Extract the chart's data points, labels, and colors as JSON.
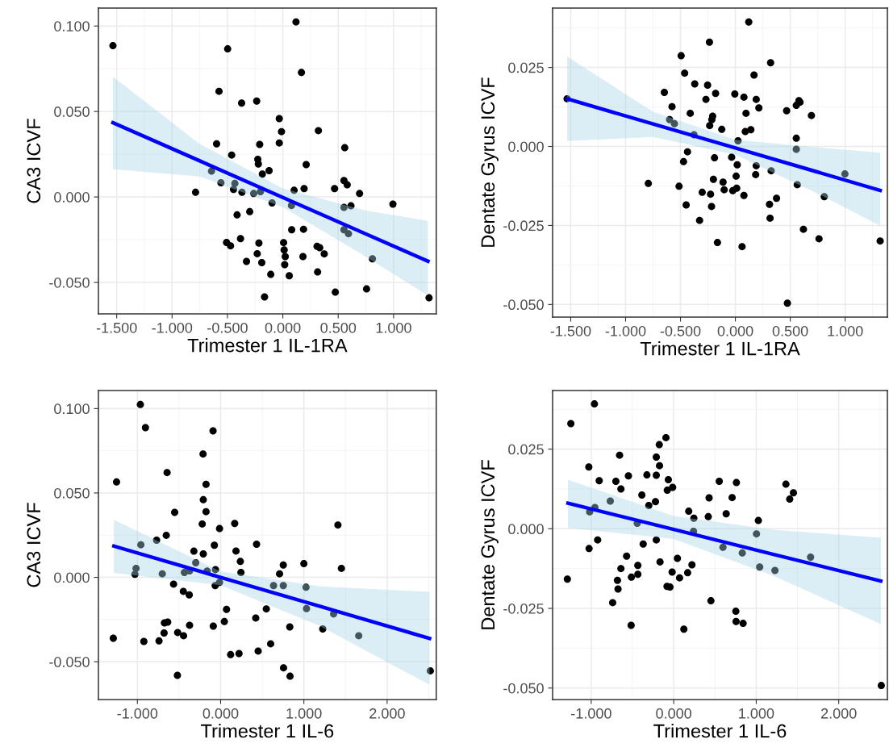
{
  "chart_data": [
    {
      "type": "scatter",
      "xlabel": "Trimester 1 IL-1RA",
      "ylabel": "CA3 ICVF",
      "grid": true,
      "xlim": [
        -1.665,
        1.385
      ],
      "ylim": [
        -0.0684,
        0.1105
      ],
      "xticks": [
        {
          "value": -1.5,
          "label": "-1.500"
        },
        {
          "value": -1.0,
          "label": "-1.000"
        },
        {
          "value": -0.5,
          "label": "-0.500"
        },
        {
          "value": 0.0,
          "label": "0.000"
        },
        {
          "value": 0.5,
          "label": "0.500"
        },
        {
          "value": 1.0,
          "label": "1.000"
        }
      ],
      "yticks": [
        {
          "value": -0.05,
          "label": "-0.050"
        },
        {
          "value": 0.0,
          "label": "0.000"
        },
        {
          "value": 0.05,
          "label": "0.050"
        },
        {
          "value": 0.1,
          "label": "0.100"
        }
      ],
      "series": [
        {
          "marker": "circle",
          "color": "#000000",
          "x": [
            -1.534,
            -0.498,
            0.119,
            0.168,
            -0.576,
            -0.372,
            -0.236,
            -0.032,
            -0.012,
            -0.032,
            0.321,
            -0.598,
            -0.209,
            -0.462,
            0.559,
            -0.226,
            -0.221,
            0.211,
            -0.644,
            -0.124,
            -0.185,
            -0.559,
            -0.433,
            -0.445,
            -0.369,
            -0.788,
            -0.263,
            -0.202,
            -0.097,
            0.102,
            0.192,
            0.467,
            0.552,
            0.581,
            0.693,
            0.994,
            0.078,
            0.552,
            0.615,
            -0.299,
            -0.413,
            0.08,
            0.187,
            0.552,
            0.593,
            -0.508,
            -0.472,
            -0.382,
            -0.216,
            -0.231,
            -0.328,
            -0.19,
            0.007,
            0.012,
            0.022,
            0.017,
            -0.109,
            0.058,
            0.182,
            0.309,
            0.333,
            0.374,
            0.314,
            0.474,
            0.756,
            0.809,
            -0.165,
            1.32
          ],
          "values": [
            0.0885,
            0.0866,
            0.1024,
            0.0728,
            0.0618,
            0.0549,
            0.0561,
            0.0458,
            0.0382,
            0.0316,
            0.0388,
            0.0311,
            0.0307,
            0.0245,
            0.0288,
            0.022,
            0.0193,
            0.0189,
            0.0151,
            0.0154,
            0.0134,
            0.0083,
            0.0079,
            0.0044,
            0.0027,
            0.0027,
            0.002,
            0.0031,
            -0.0035,
            0.0039,
            0.0049,
            0.0049,
            0.0096,
            0.0071,
            0.002,
            -0.0042,
            -0.005,
            -0.0061,
            -0.0052,
            -0.0086,
            -0.0105,
            -0.0192,
            -0.0189,
            -0.0192,
            -0.0215,
            -0.0266,
            -0.0286,
            -0.0244,
            -0.027,
            -0.0332,
            -0.0377,
            -0.0384,
            -0.0267,
            -0.031,
            -0.0349,
            -0.0396,
            -0.0453,
            -0.0461,
            -0.0349,
            -0.0289,
            -0.0297,
            -0.0333,
            -0.0439,
            -0.0557,
            -0.0538,
            -0.0362,
            -0.0585,
            -0.059
          ]
        },
        {
          "type": "line",
          "color": "#0000ff",
          "x": [
            -1.534,
            -0.75,
            0.0,
            0.75,
            1.31
          ],
          "values": [
            0.0434,
            0.0211,
            -0.0003,
            -0.0217,
            -0.0376
          ],
          "lower": [
            0.0162,
            0.012,
            -0.006,
            -0.035,
            -0.0577
          ],
          "upper": [
            0.0704,
            0.031,
            0.005,
            -0.008,
            -0.014
          ]
        }
      ]
    },
    {
      "type": "scatter",
      "xlabel": "Trimester 1 IL-1RA",
      "ylabel": "Dentate Gyrus ICVF",
      "grid": true,
      "xlim": [
        -1.665,
        1.385
      ],
      "ylim": [
        -0.054,
        0.0438
      ],
      "xticks": [
        {
          "value": -1.5,
          "label": "-1.500"
        },
        {
          "value": -1.0,
          "label": "-1.000"
        },
        {
          "value": -0.5,
          "label": "-0.500"
        },
        {
          "value": 0.0,
          "label": "0.000"
        },
        {
          "value": 0.5,
          "label": "0.500"
        },
        {
          "value": 1.0,
          "label": "1.000"
        }
      ],
      "yticks": [
        {
          "value": -0.05,
          "label": "-0.050"
        },
        {
          "value": -0.025,
          "label": "-0.025"
        },
        {
          "value": 0.0,
          "label": "0.000"
        },
        {
          "value": 0.025,
          "label": "0.025"
        }
      ],
      "series": [
        {
          "marker": "circle",
          "color": "#000000",
          "x": [
            0.122,
            -0.236,
            -0.494,
            0.321,
            -0.462,
            0.17,
            -0.37,
            -0.253,
            -0.647,
            -0.18,
            -0.005,
            0.078,
            -0.268,
            0.19,
            -0.577,
            0.214,
            0.579,
            0.589,
            0.555,
            0.467,
            0.693,
            -0.411,
            0.097,
            -0.207,
            -0.214,
            -0.599,
            -0.555,
            -0.234,
            -0.124,
            0.141,
            0.09,
            -0.377,
            0.024,
            0.555,
            -1.533,
            -0.436,
            0.555,
            -0.19,
            -0.034,
            0.017,
            -0.472,
            0.19,
            0.185,
            0.326,
            0.007,
            -0.2,
            -0.112,
            -0.793,
            -0.513,
            0.564,
            0.998,
            -0.302,
            -0.226,
            -0.102,
            -0.024,
            0.012,
            0.078,
            0.375,
            0.311,
            0.81,
            -0.448,
            -0.217,
            0.316,
            -0.326,
            0.62,
            0.762,
            -0.163,
            0.061,
            1.319,
            0.474
          ],
          "values": [
            0.0394,
            0.033,
            0.0287,
            0.0265,
            0.0232,
            0.0226,
            0.0198,
            0.0194,
            0.0171,
            0.0168,
            0.0166,
            0.0156,
            0.0149,
            0.0149,
            0.0126,
            0.0122,
            0.0145,
            0.014,
            0.013,
            0.0113,
            0.0098,
            0.0105,
            0.0105,
            0.0096,
            0.0085,
            0.0085,
            0.0072,
            0.0066,
            0.0054,
            0.0053,
            0.0047,
            0.0037,
            0.0018,
            0.0026,
            0.0151,
            -0.0017,
            -0.0009,
            -0.0036,
            -0.0034,
            -0.0058,
            -0.0048,
            -0.0061,
            -0.0089,
            -0.0077,
            -0.0094,
            -0.0104,
            -0.0113,
            -0.0117,
            -0.0126,
            -0.0121,
            -0.0087,
            -0.0145,
            -0.0151,
            -0.0137,
            -0.014,
            -0.0132,
            -0.0155,
            -0.0164,
            -0.0183,
            -0.0159,
            -0.0185,
            -0.019,
            -0.0227,
            -0.0234,
            -0.0262,
            -0.0292,
            -0.0304,
            -0.0317,
            -0.0299,
            -0.0496
          ]
        },
        {
          "type": "line",
          "color": "#0000ff",
          "x": [
            -1.533,
            -0.75,
            0.0,
            0.75,
            1.319
          ],
          "values": [
            0.0151,
            0.0071,
            -0.0005,
            -0.0081,
            -0.0139
          ],
          "lower": [
            0.0017,
            0.003,
            -0.0026,
            -0.0149,
            -0.0251
          ],
          "upper": [
            0.0285,
            0.011,
            0.0021,
            -0.0003,
            -0.002
          ]
        }
      ]
    },
    {
      "type": "scatter",
      "xlabel": "Trimester 1 IL-6",
      "ylabel": "CA3 ICVF",
      "grid": true,
      "xlim": [
        -1.468,
        2.59
      ],
      "ylim": [
        -0.0724,
        0.1107
      ],
      "xticks": [
        {
          "value": -1.0,
          "label": "-1.000"
        },
        {
          "value": 0.0,
          "label": "0.000"
        },
        {
          "value": 1.0,
          "label": "1.000"
        },
        {
          "value": 2.0,
          "label": "2.000"
        }
      ],
      "yticks": [
        {
          "value": -0.05,
          "label": "-0.050"
        },
        {
          "value": 0.0,
          "label": "0.000"
        },
        {
          "value": 0.05,
          "label": "0.050"
        },
        {
          "value": 0.1,
          "label": "0.100"
        }
      ],
      "series": [
        {
          "marker": "circle",
          "color": "#000000",
          "x": [
            -0.964,
            -0.903,
            -0.091,
            -0.211,
            -0.643,
            -1.25,
            -0.175,
            -0.208,
            -0.175,
            -0.552,
            -0.221,
            0.169,
            -0.013,
            1.409,
            -0.653,
            -0.769,
            -0.958,
            -0.075,
            0.432,
            -0.321,
            0.185,
            -0.208,
            0.237,
            -0.299,
            0.753,
            1.0,
            1.451,
            -1.016,
            -1.029,
            -0.701,
            -0.435,
            -0.373,
            -0.162,
            -0.062,
            0.244,
            0.708,
            -0.013,
            -0.065,
            0.636,
            0.753,
            1.026,
            -0.565,
            -0.448,
            -0.377,
            0.071,
            0.549,
            1.032,
            1.357,
            0.422,
            0.045,
            0.831,
            1.227,
            1.659,
            -0.088,
            -0.373,
            -0.675,
            -0.636,
            -0.679,
            -0.516,
            -0.445,
            -1.289,
            -0.922,
            -0.74,
            0.601,
            0.451,
            0.12,
            0.221,
            0.756,
            0.834,
            -0.519,
            2.519
          ],
          "values": [
            0.1024,
            0.0887,
            0.0868,
            0.0731,
            0.0621,
            0.0565,
            0.0551,
            0.046,
            0.0389,
            0.0385,
            0.0316,
            0.0319,
            0.0289,
            0.031,
            0.0249,
            0.022,
            0.0193,
            0.019,
            0.0196,
            0.0155,
            0.0156,
            0.0139,
            0.0094,
            0.0086,
            0.0073,
            0.0081,
            0.0053,
            0.0053,
            0.0018,
            0.0021,
            0.0029,
            0.0038,
            0.0037,
            0.0046,
            0.0029,
            0.0021,
            -0.003,
            -0.0049,
            -0.0049,
            -0.0049,
            -0.0059,
            -0.004,
            -0.0083,
            -0.0104,
            -0.019,
            -0.0187,
            -0.0185,
            -0.0217,
            -0.0241,
            -0.0262,
            -0.0294,
            -0.0306,
            -0.0346,
            -0.0289,
            -0.0284,
            -0.027,
            -0.0265,
            -0.033,
            -0.0327,
            -0.0346,
            -0.0361,
            -0.038,
            -0.0377,
            -0.0394,
            -0.0437,
            -0.0458,
            -0.0452,
            -0.0536,
            -0.0586,
            -0.0581,
            -0.0554
          ]
        },
        {
          "type": "line",
          "color": "#0000ff",
          "x": [
            -1.282,
            0.0,
            1.2,
            2.51
          ],
          "values": [
            0.0185,
            0.0,
            -0.0173,
            -0.0362
          ],
          "lower": [
            0.0026,
            -0.0046,
            -0.029,
            -0.0637
          ],
          "upper": [
            0.0341,
            0.0035,
            -0.0054,
            -0.0086
          ]
        }
      ]
    },
    {
      "type": "scatter",
      "xlabel": "Trimester 1 IL-6",
      "ylabel": "Dentate Gyrus ICVF",
      "grid": true,
      "xlim": [
        -1.468,
        2.59
      ],
      "ylim": [
        -0.0536,
        0.0434
      ],
      "xticks": [
        {
          "value": -1.0,
          "label": "-1.000"
        },
        {
          "value": 0.0,
          "label": "0.000"
        },
        {
          "value": 1.0,
          "label": "1.000"
        },
        {
          "value": 2.0,
          "label": "2.000"
        }
      ],
      "yticks": [
        {
          "value": -0.05,
          "label": "-0.050"
        },
        {
          "value": -0.025,
          "label": "-0.025"
        },
        {
          "value": 0.0,
          "label": "0.000"
        },
        {
          "value": 0.025,
          "label": "0.025"
        }
      ],
      "series": [
        {
          "marker": "circle",
          "color": "#000000",
          "x": [
            -0.961,
            -1.247,
            -0.094,
            -0.175,
            -0.656,
            -0.211,
            -0.172,
            -1.029,
            -0.549,
            -0.325,
            -0.211,
            -0.903,
            -0.701,
            -0.065,
            -0.64,
            -0.078,
            -0.013,
            0.552,
            0.76,
            1.36,
            1.451,
            1.406,
            -0.386,
            0.429,
            0.708,
            -0.221,
            -0.302,
            -0.769,
            -0.955,
            -1.019,
            0.636,
            0.182,
            0.244,
            0.419,
            1.026,
            -0.442,
            0.24,
            1.003,
            -0.211,
            -0.922,
            -0.37,
            -1.026,
            0.597,
            0.831,
            1.659,
            -0.571,
            0.045,
            -0.166,
            0.221,
            -0.435,
            1.042,
            1.227,
            -0.64,
            -0.019,
            0.169,
            -0.435,
            -0.513,
            0.071,
            -1.289,
            -0.682,
            -0.675,
            -0.081,
            -0.045,
            -0.74,
            0.451,
            0.753,
            0.756,
            0.841,
            -0.516,
            0.123,
            2.516
          ],
          "values": [
            0.0392,
            0.033,
            0.0286,
            0.0264,
            0.0231,
            0.0225,
            0.0198,
            0.0194,
            0.0166,
            0.0169,
            0.0168,
            0.0151,
            0.0149,
            0.0154,
            0.0125,
            0.0121,
            0.013,
            0.0149,
            0.0145,
            0.014,
            0.0113,
            0.0093,
            0.0106,
            0.0097,
            0.0098,
            0.0085,
            0.0073,
            0.0087,
            0.0067,
            0.0053,
            0.0047,
            0.0055,
            0.0033,
            0.0038,
            0.0026,
            0.0017,
            -0.0008,
            -0.0016,
            -0.0035,
            -0.0035,
            -0.0048,
            -0.0062,
            -0.0058,
            -0.0076,
            -0.0089,
            -0.0086,
            -0.0093,
            -0.0104,
            -0.0113,
            -0.0115,
            -0.012,
            -0.0131,
            -0.0125,
            -0.0136,
            -0.0138,
            -0.0143,
            -0.0152,
            -0.0154,
            -0.0158,
            -0.0162,
            -0.0189,
            -0.0181,
            -0.0183,
            -0.0232,
            -0.0226,
            -0.0259,
            -0.0291,
            -0.0297,
            -0.0303,
            -0.0315,
            -0.0492
          ]
        },
        {
          "type": "line",
          "color": "#0000ff",
          "x": [
            -1.282,
            0.0,
            1.2,
            2.51
          ],
          "values": [
            0.008,
            -0.0002,
            -0.008,
            -0.0164
          ],
          "lower": [
            0.0003,
            -0.0032,
            -0.0147,
            -0.0299
          ],
          "upper": [
            0.0154,
            0.004,
            -0.0003,
            -0.0028
          ]
        }
      ]
    }
  ]
}
